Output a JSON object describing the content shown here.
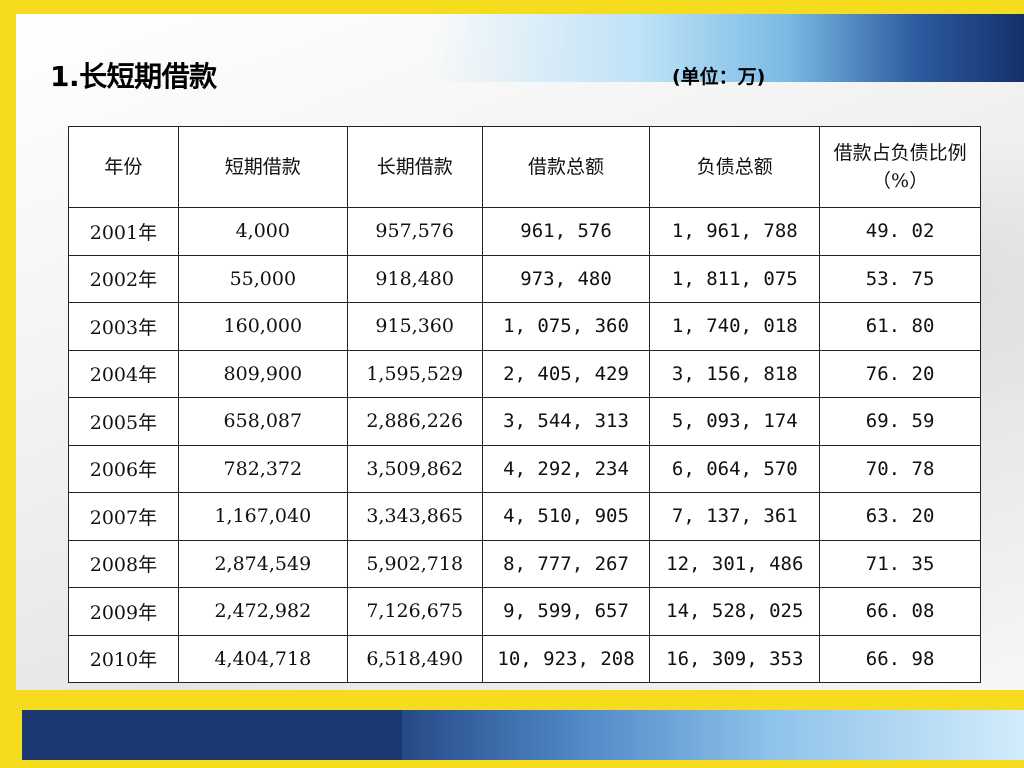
{
  "slide": {
    "title": "1.长短期借款",
    "unit": "(单位：万)"
  },
  "theme": {
    "frame_color": "#f5dc1f",
    "band_dark": "#1c3870",
    "band_light": "#8fc3ea"
  },
  "table": {
    "headers": [
      "年份",
      "短期借款",
      "长期借款",
      "借款总额",
      "负债总额",
      "借款占负债比例（%）"
    ],
    "rows": [
      [
        "2001年",
        "4,000",
        "957,576",
        "961, 576",
        "1, 961, 788",
        "49. 02"
      ],
      [
        "2002年",
        "55,000",
        "918,480",
        "973, 480",
        "1, 811, 075",
        "53. 75"
      ],
      [
        "2003年",
        "160,000",
        "915,360",
        "1, 075, 360",
        "1, 740, 018",
        "61. 80"
      ],
      [
        "2004年",
        "809,900",
        "1,595,529",
        "2, 405, 429",
        "3, 156, 818",
        "76. 20"
      ],
      [
        "2005年",
        "658,087",
        "2,886,226",
        "3, 544, 313",
        "5, 093, 174",
        "69. 59"
      ],
      [
        "2006年",
        "782,372",
        "3,509,862",
        "4, 292, 234",
        "6, 064, 570",
        "70. 78"
      ],
      [
        "2007年",
        "1,167,040",
        "3,343,865",
        "4, 510, 905",
        "7, 137, 361",
        "63. 20"
      ],
      [
        "2008年",
        "2,874,549",
        "5,902,718",
        "8, 777, 267",
        "12, 301, 486",
        "71. 35"
      ],
      [
        "2009年",
        "2,472,982",
        "7,126,675",
        "9, 599, 657",
        "14, 528, 025",
        "66. 08"
      ],
      [
        "2010年",
        "4,404,718",
        "6,518,490",
        "10, 923, 208",
        "16, 309, 353",
        "66. 98"
      ]
    ]
  }
}
